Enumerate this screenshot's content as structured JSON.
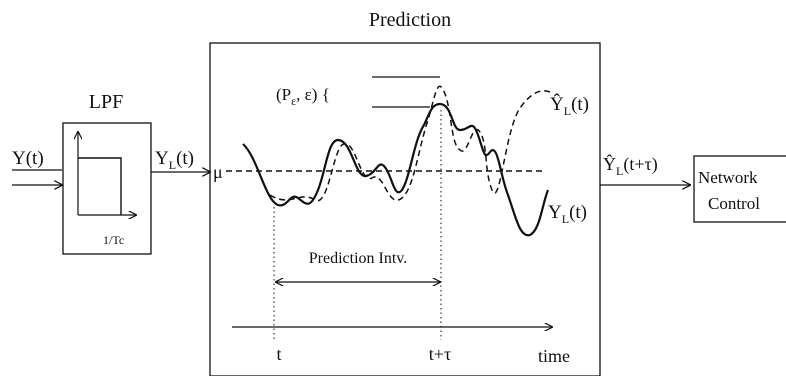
{
  "title": "Prediction",
  "input": {
    "symbol": "Y",
    "arg": "(t)"
  },
  "lpf": {
    "label": "LPF",
    "cutoff_label": "1/Tc"
  },
  "filtered": {
    "symbol": "Y",
    "sub": "L",
    "arg": "(t)"
  },
  "mean_label": "μ",
  "error_bound": {
    "text": "(P",
    "sub": "ε",
    "rest": ", ε) {"
  },
  "predicted_curve_label": {
    "symbol": "Ŷ",
    "sub": "L",
    "arg": "(t)"
  },
  "actual_curve_label": {
    "symbol": "Y",
    "sub": "L",
    "arg": "(t)"
  },
  "interval_label": "Prediction Intv.",
  "time_axis": {
    "t": "t",
    "t_tau": "t+τ",
    "label": "time"
  },
  "output": {
    "symbol": "Ŷ",
    "sub": "L",
    "arg": "(t+τ)"
  },
  "network_control": {
    "line1": "Network",
    "line2": "Control"
  },
  "colors": {
    "stroke": "#111111",
    "background": "#ffffff"
  }
}
